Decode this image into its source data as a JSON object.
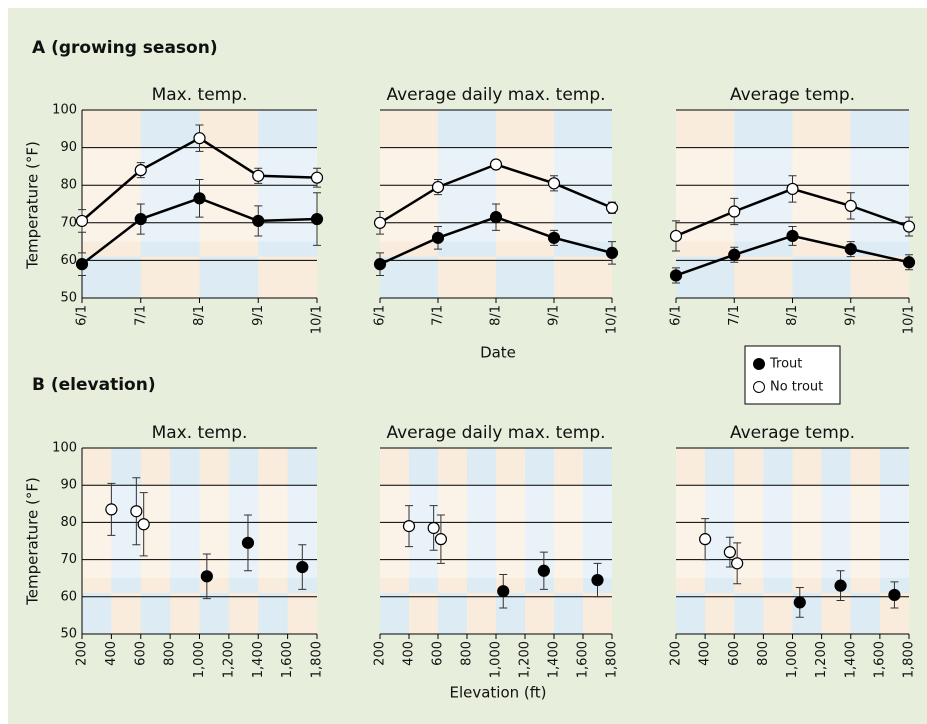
{
  "sections": [
    {
      "title": "A (growing season)",
      "ylabel": "Temperature (°F)",
      "xlabel": "Date"
    },
    {
      "title": "B (elevation)",
      "ylabel": "Temperature (°F)",
      "xlabel": "Elevation (ft)"
    }
  ],
  "chart_data": [
    {
      "type": "line",
      "title": "Max. temp.",
      "categories": [
        "6/1",
        "7/1",
        "8/1",
        "9/1",
        "10/1"
      ],
      "ylim": [
        50,
        100
      ],
      "yticks": [
        50,
        60,
        70,
        80,
        90,
        100
      ],
      "grid": true,
      "series": [
        {
          "name": "Trout",
          "color": "#000000",
          "values": [
            59,
            71,
            76.5,
            70.5,
            71
          ],
          "errors": [
            3,
            4,
            5,
            4,
            7
          ]
        },
        {
          "name": "No trout",
          "color": "#ffffff",
          "values": [
            70.5,
            84,
            92.5,
            82.5,
            82
          ],
          "errors": [
            3,
            2,
            3.5,
            2,
            2.5
          ]
        }
      ]
    },
    {
      "type": "line",
      "title": "Average daily max. temp.",
      "categories": [
        "6/1",
        "7/1",
        "8/1",
        "9/1",
        "10/1"
      ],
      "ylim": [
        50,
        100
      ],
      "yticks": [
        50,
        60,
        70,
        80,
        90,
        100
      ],
      "grid": true,
      "series": [
        {
          "name": "Trout",
          "color": "#000000",
          "values": [
            59,
            66,
            71.5,
            66,
            62
          ],
          "errors": [
            3,
            3,
            3.5,
            2,
            3
          ]
        },
        {
          "name": "No trout",
          "color": "#ffffff",
          "values": [
            70,
            79.5,
            85.5,
            80.5,
            74
          ],
          "errors": [
            3,
            2,
            1,
            2,
            1.5
          ]
        }
      ]
    },
    {
      "type": "line",
      "title": "Average temp.",
      "categories": [
        "6/1",
        "7/1",
        "8/1",
        "9/1",
        "10/1"
      ],
      "ylim": [
        50,
        100
      ],
      "yticks": [
        50,
        60,
        70,
        80,
        90,
        100
      ],
      "grid": true,
      "series": [
        {
          "name": "Trout",
          "color": "#000000",
          "values": [
            56,
            61.5,
            66.5,
            63,
            59.5
          ],
          "errors": [
            2,
            2,
            2.5,
            2,
            2
          ]
        },
        {
          "name": "No trout",
          "color": "#ffffff",
          "values": [
            66.5,
            73,
            79,
            74.5,
            69
          ],
          "errors": [
            4,
            3.5,
            3.5,
            3.5,
            2.5
          ]
        }
      ]
    },
    {
      "type": "scatter",
      "title": "Max. temp.",
      "xlim": [
        200,
        1800
      ],
      "xticks": [
        200,
        400,
        600,
        800,
        {
          "value": 1000,
          "label": "1,000"
        },
        {
          "value": 1200,
          "label": "1,200"
        },
        {
          "value": 1400,
          "label": "1,400"
        },
        {
          "value": 1600,
          "label": "1,600"
        },
        {
          "value": 1800,
          "label": "1,800"
        }
      ],
      "ylim": [
        50,
        100
      ],
      "yticks": [
        50,
        60,
        70,
        80,
        90,
        100
      ],
      "grid": true,
      "series": [
        {
          "name": "Trout",
          "color": "#000000",
          "x": [
            1050,
            1330,
            1700
          ],
          "values": [
            65.5,
            74.5,
            68
          ],
          "errors": [
            6,
            7.5,
            6
          ]
        },
        {
          "name": "No trout",
          "color": "#ffffff",
          "x": [
            400,
            570,
            620
          ],
          "values": [
            83.5,
            83,
            79.5
          ],
          "errors": [
            7,
            9,
            8.5
          ]
        }
      ]
    },
    {
      "type": "scatter",
      "title": "Average daily max. temp.",
      "xlim": [
        200,
        1800
      ],
      "xticks": [
        200,
        400,
        600,
        800,
        {
          "value": 1000,
          "label": "1,000"
        },
        {
          "value": 1200,
          "label": "1,200"
        },
        {
          "value": 1400,
          "label": "1,400"
        },
        {
          "value": 1600,
          "label": "1,600"
        },
        {
          "value": 1800,
          "label": "1,800"
        }
      ],
      "ylim": [
        50,
        100
      ],
      "yticks": [
        50,
        60,
        70,
        80,
        90,
        100
      ],
      "grid": true,
      "series": [
        {
          "name": "Trout",
          "color": "#000000",
          "x": [
            1050,
            1330,
            1700
          ],
          "values": [
            61.5,
            67,
            64.5
          ],
          "errors": [
            4.5,
            5,
            4.5
          ]
        },
        {
          "name": "No trout",
          "color": "#ffffff",
          "x": [
            400,
            570,
            620
          ],
          "values": [
            79,
            78.5,
            75.5
          ],
          "errors": [
            5.5,
            6,
            6.5
          ]
        }
      ]
    },
    {
      "type": "scatter",
      "title": "Average temp.",
      "xlim": [
        200,
        1800
      ],
      "xticks": [
        200,
        400,
        600,
        800,
        {
          "value": 1000,
          "label": "1,000"
        },
        {
          "value": 1200,
          "label": "1,200"
        },
        {
          "value": 1400,
          "label": "1,400"
        },
        {
          "value": 1600,
          "label": "1,600"
        },
        {
          "value": 1800,
          "label": "1,800"
        }
      ],
      "ylim": [
        50,
        100
      ],
      "yticks": [
        50,
        60,
        70,
        80,
        90,
        100
      ],
      "grid": true,
      "series": [
        {
          "name": "Trout",
          "color": "#000000",
          "x": [
            1050,
            1330,
            1700
          ],
          "values": [
            58.5,
            63,
            60.5
          ],
          "errors": [
            4,
            4,
            3.5
          ]
        },
        {
          "name": "No trout",
          "color": "#ffffff",
          "x": [
            400,
            570,
            620
          ],
          "values": [
            75.5,
            72,
            69
          ],
          "errors": [
            5.5,
            4,
            5.5
          ]
        }
      ]
    }
  ]
}
